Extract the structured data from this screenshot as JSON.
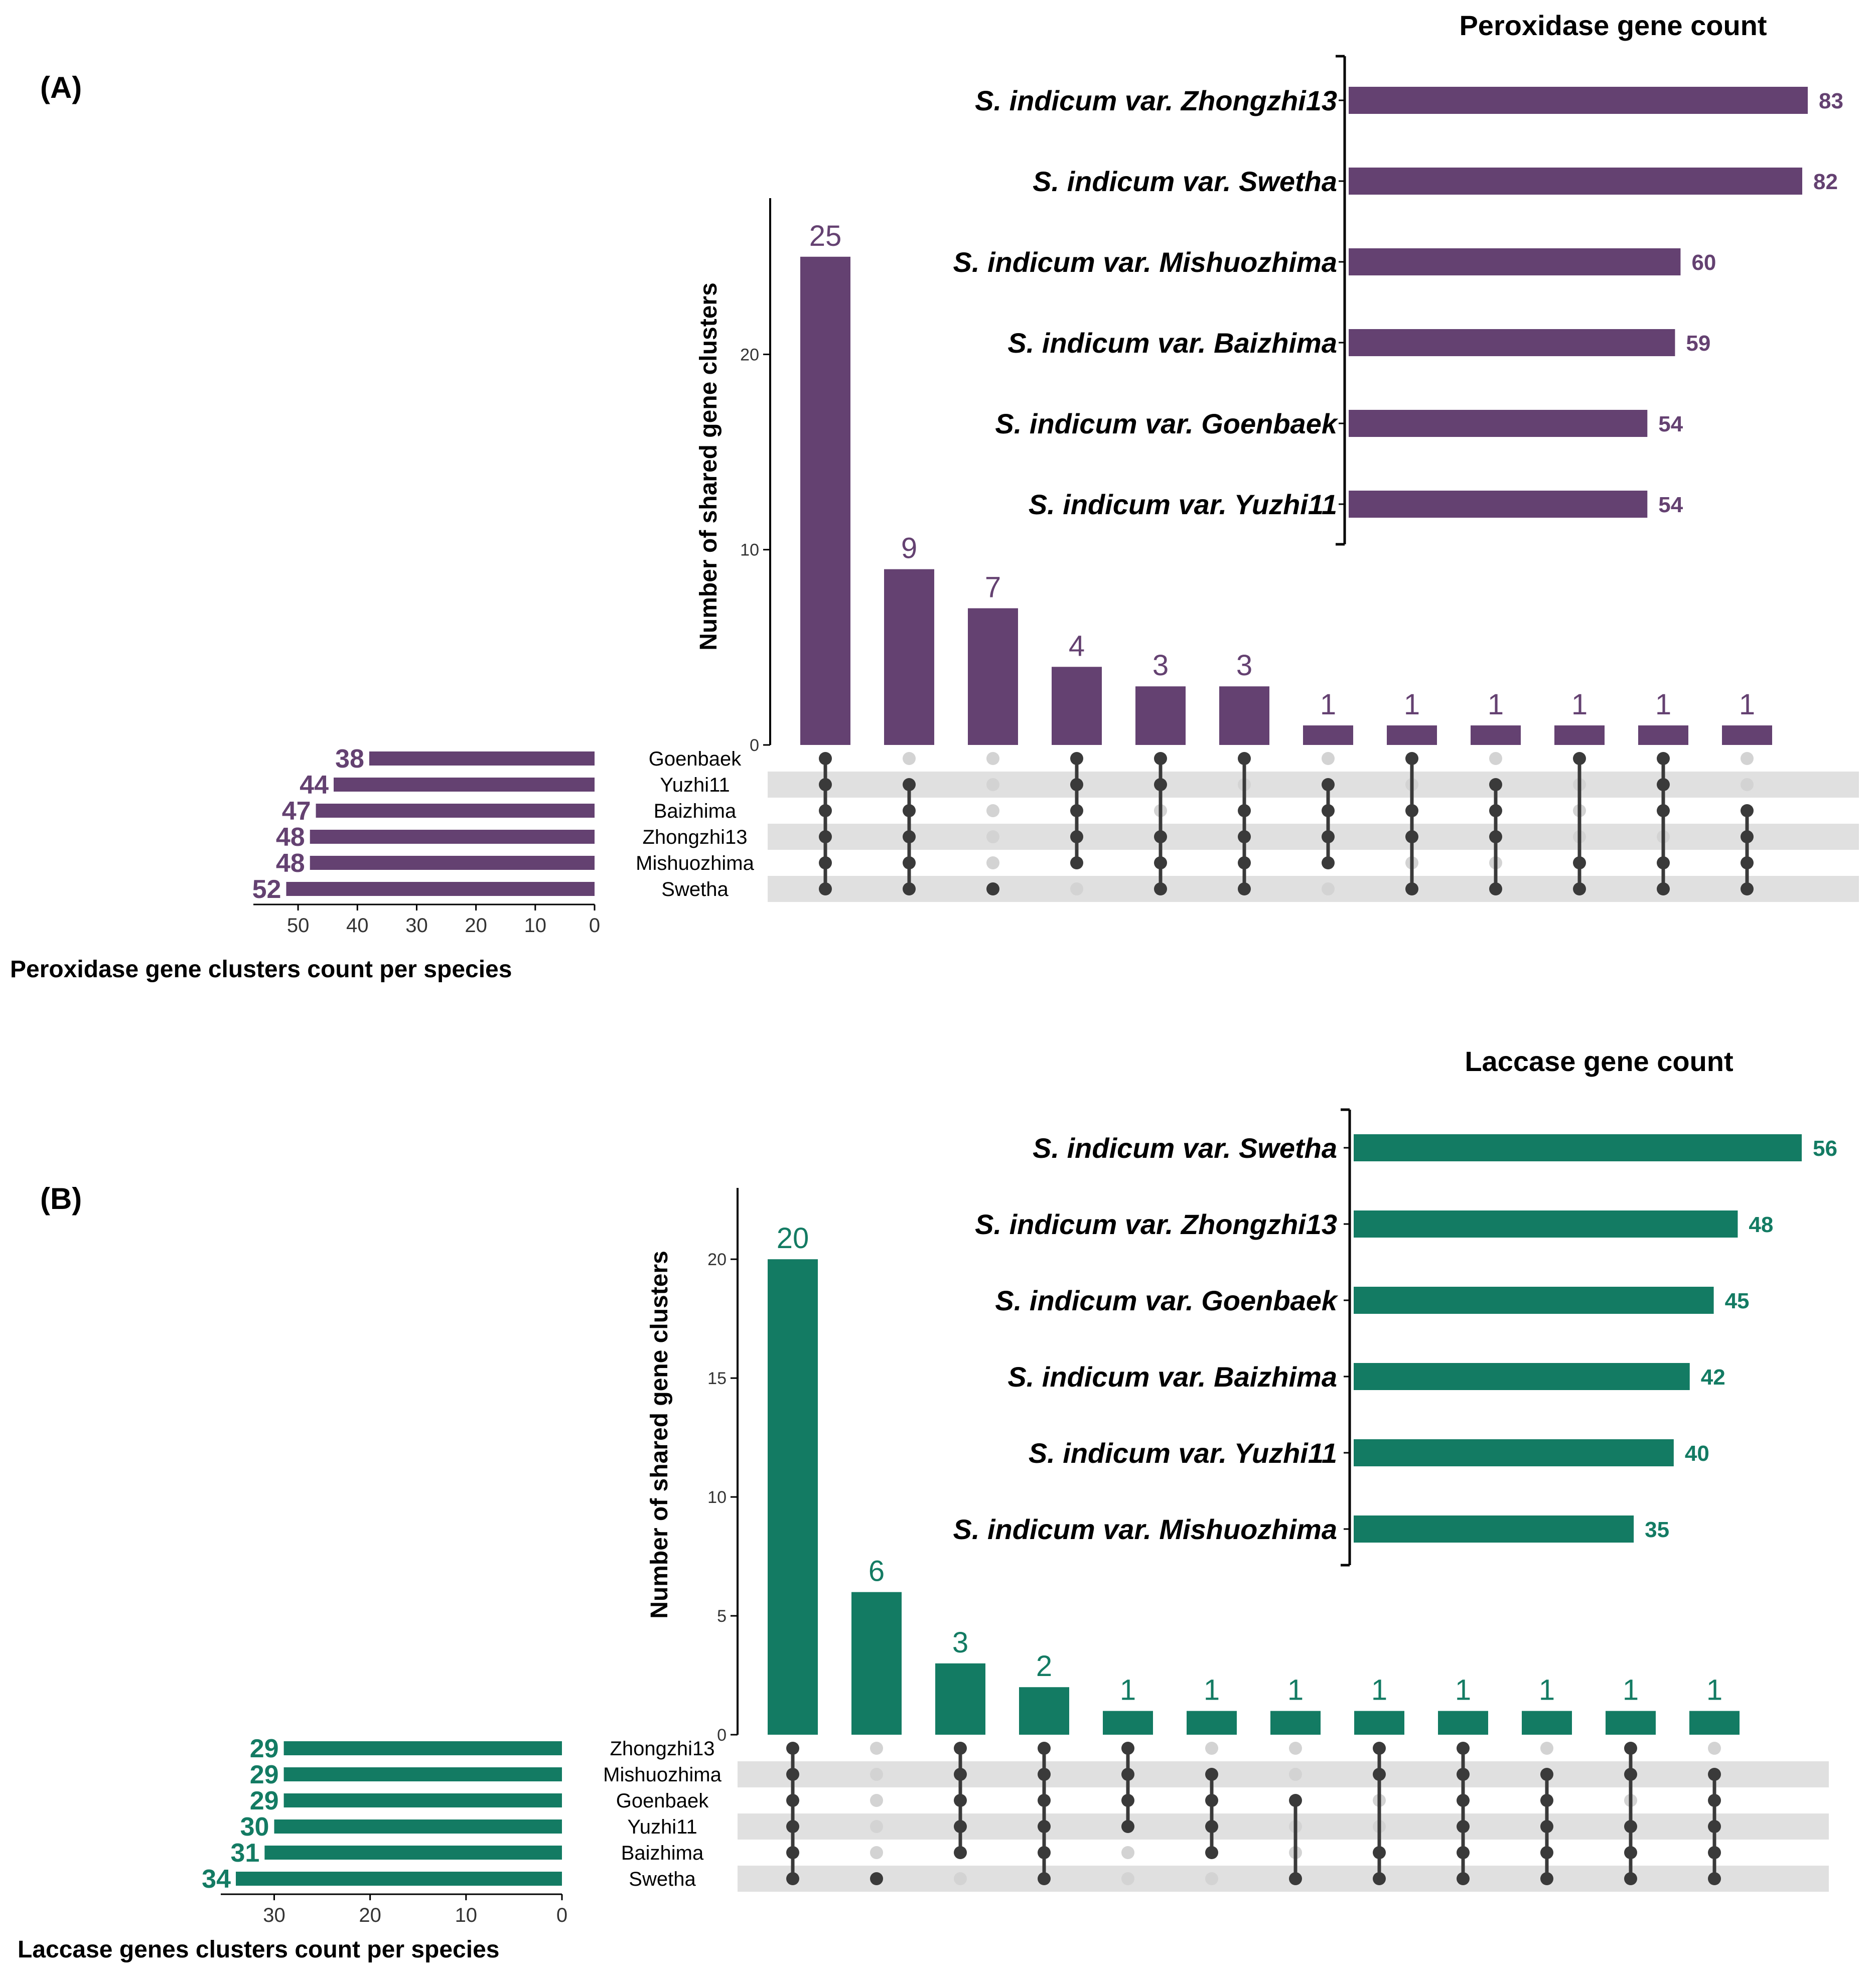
{
  "chart_data": [
    {
      "type": "upset",
      "panel_label": "(A)",
      "color": "#644171",
      "ylabel": "Number of shared gene clusters",
      "ylim": [
        0,
        28
      ],
      "yticks": [
        0,
        10,
        20
      ],
      "set_names": [
        "Goenbaek",
        "Yuzhi11",
        "Baizhima",
        "Zhongzhi13",
        "Mishuozhima",
        "Swetha"
      ],
      "set_sizes": [
        38,
        44,
        47,
        48,
        48,
        52
      ],
      "set_size_xlabel": "Peroxidase gene clusters count per species",
      "set_size_xlim": [
        0,
        55
      ],
      "set_size_ticks": [
        50,
        40,
        30,
        20,
        10,
        0
      ],
      "intersection_values": [
        25,
        9,
        7,
        4,
        3,
        3,
        1,
        1,
        1,
        1,
        1,
        1
      ],
      "intersection_labels": [
        "25",
        "9",
        "7",
        "4",
        "3",
        "3",
        "1",
        "1",
        "1",
        "1",
        "1",
        "1"
      ],
      "intersection_sets": [
        [
          "Goenbaek",
          "Yuzhi11",
          "Baizhima",
          "Zhongzhi13",
          "Mishuozhima",
          "Swetha"
        ],
        [
          "Yuzhi11",
          "Baizhima",
          "Zhongzhi13",
          "Mishuozhima",
          "Swetha"
        ],
        [
          "Swetha"
        ],
        [
          "Goenbaek",
          "Yuzhi11",
          "Baizhima",
          "Zhongzhi13",
          "Mishuozhima"
        ],
        [
          "Goenbaek",
          "Yuzhi11",
          "Zhongzhi13",
          "Mishuozhima",
          "Swetha"
        ],
        [
          "Goenbaek",
          "Baizhima",
          "Zhongzhi13",
          "Mishuozhima",
          "Swetha"
        ],
        [
          "Yuzhi11",
          "Baizhima",
          "Zhongzhi13",
          "Mishuozhima"
        ],
        [
          "Goenbaek",
          "Baizhima",
          "Zhongzhi13",
          "Swetha"
        ],
        [
          "Yuzhi11",
          "Baizhima",
          "Zhongzhi13",
          "Swetha"
        ],
        [
          "Goenbaek",
          "Mishuozhima",
          "Swetha"
        ],
        [
          "Goenbaek",
          "Yuzhi11",
          "Baizhima",
          "Mishuozhima",
          "Swetha"
        ],
        [
          "Baizhima",
          "Zhongzhi13",
          "Mishuozhima",
          "Swetha"
        ]
      ],
      "inset": {
        "title": "Peroxidase gene count",
        "species": [
          "S. indicum var. Zhongzhi13",
          "S. indicum var. Swetha",
          "S. indicum var. Mishuozhima",
          "S. indicum var. Baizhima",
          "S. indicum var. Goenbaek",
          "S. indicum var. Yuzhi11"
        ],
        "values": [
          83,
          82,
          60,
          59,
          54,
          54
        ],
        "value_labels": [
          "83",
          "82",
          "60",
          "59",
          "54",
          "54"
        ],
        "xlim": [
          0,
          83
        ]
      }
    },
    {
      "type": "upset",
      "panel_label": "(B)",
      "color": "#137B63",
      "ylabel": "Number of shared gene clusters",
      "ylim": [
        0,
        23
      ],
      "yticks": [
        0,
        5,
        10,
        15,
        20
      ],
      "set_names": [
        "Zhongzhi13",
        "Mishuozhima",
        "Goenbaek",
        "Yuzhi11",
        "Baizhima",
        "Swetha"
      ],
      "set_sizes": [
        29,
        29,
        29,
        30,
        31,
        34
      ],
      "set_size_xlabel": "Laccase genes clusters count per species",
      "set_size_xlim": [
        0,
        34
      ],
      "set_size_ticks": [
        30,
        20,
        10,
        0
      ],
      "intersection_values": [
        20,
        6,
        3,
        2,
        1,
        1,
        1,
        1,
        1,
        1,
        1,
        1
      ],
      "intersection_labels": [
        "20",
        "6",
        "3",
        "2",
        "1",
        "1",
        "1",
        "1",
        "1",
        "1",
        "1",
        "1"
      ],
      "intersection_sets": [
        [
          "Zhongzhi13",
          "Mishuozhima",
          "Goenbaek",
          "Yuzhi11",
          "Baizhima",
          "Swetha"
        ],
        [
          "Swetha"
        ],
        [
          "Zhongzhi13",
          "Mishuozhima",
          "Goenbaek",
          "Yuzhi11",
          "Baizhima"
        ],
        [
          "Zhongzhi13",
          "Mishuozhima",
          "Goenbaek",
          "Yuzhi11",
          "Baizhima",
          "Swetha"
        ],
        [
          "Zhongzhi13",
          "Mishuozhima",
          "Goenbaek",
          "Yuzhi11"
        ],
        [
          "Mishuozhima",
          "Goenbaek",
          "Yuzhi11",
          "Baizhima"
        ],
        [
          "Goenbaek",
          "Swetha"
        ],
        [
          "Zhongzhi13",
          "Mishuozhima",
          "Baizhima",
          "Swetha"
        ],
        [
          "Zhongzhi13",
          "Mishuozhima",
          "Goenbaek",
          "Yuzhi11",
          "Baizhima",
          "Swetha"
        ],
        [
          "Mishuozhima",
          "Goenbaek",
          "Yuzhi11",
          "Baizhima",
          "Swetha"
        ],
        [
          "Zhongzhi13",
          "Mishuozhima",
          "Yuzhi11",
          "Baizhima",
          "Swetha"
        ],
        [
          "Mishuozhima",
          "Goenbaek",
          "Yuzhi11",
          "Baizhima",
          "Swetha"
        ]
      ],
      "inset": {
        "title": "Laccase gene count",
        "species": [
          "S. indicum var. Swetha",
          "S. indicum var. Zhongzhi13",
          "S. indicum var. Goenbaek",
          "S. indicum var. Baizhima",
          "S. indicum var. Yuzhi11",
          "S. indicum var. Mishuozhima"
        ],
        "values": [
          56,
          48,
          45,
          42,
          40,
          35
        ],
        "value_labels": [
          "56",
          "48",
          "45",
          "42",
          "40",
          "35"
        ],
        "xlim": [
          0,
          56
        ]
      }
    }
  ]
}
